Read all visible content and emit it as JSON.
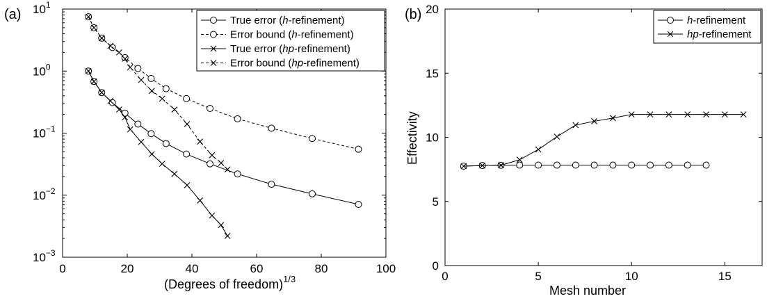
{
  "chart_data": [
    {
      "panel_label": "(a)",
      "type": "line",
      "xlabel": "(Degrees of freedom)",
      "xlabel_sup": "1/3",
      "ylabel": "",
      "xlim": [
        0,
        100
      ],
      "ylim": [
        0.001,
        10
      ],
      "yscale": "log",
      "xticks": [
        "0",
        "20",
        "40",
        "60",
        "80",
        "100"
      ],
      "yticks": [
        {
          "base": "10",
          "exp": "−3"
        },
        {
          "base": "10",
          "exp": "−2"
        },
        {
          "base": "10",
          "exp": "−1"
        },
        {
          "base": "10",
          "exp": "0"
        },
        {
          "base": "10",
          "exp": "1"
        }
      ],
      "legend_position": "top-right",
      "series": [
        {
          "name": "True error (h-refinement)",
          "legend_pre": "True error (",
          "legend_it": "h",
          "legend_post": "-refinement)",
          "marker": "circle",
          "dash": false,
          "x": [
            8,
            9.7,
            12.1,
            15.4,
            19.3,
            23.3,
            27.4,
            32,
            38.3,
            45.6,
            54.1,
            64.6,
            77.2,
            91.5
          ],
          "y": [
            1.0,
            0.68,
            0.45,
            0.31,
            0.21,
            0.14,
            0.098,
            0.068,
            0.046,
            0.032,
            0.022,
            0.015,
            0.0105,
            0.0071
          ]
        },
        {
          "name": "Error bound (h-refinement)",
          "legend_pre": "Error bound (",
          "legend_it": "h",
          "legend_post": "-refinement)",
          "marker": "circle",
          "dash": true,
          "x": [
            8,
            9.7,
            12.1,
            15.4,
            19.3,
            23.3,
            27.4,
            32,
            38.3,
            45.6,
            54.1,
            64.6,
            77.2,
            91.5
          ],
          "y": [
            7.5,
            5.0,
            3.4,
            2.4,
            1.65,
            1.1,
            0.76,
            0.52,
            0.36,
            0.25,
            0.17,
            0.12,
            0.082,
            0.055
          ]
        },
        {
          "name": "True error (hp-refinement)",
          "legend_pre": "True error (",
          "legend_it": "hp",
          "legend_post": "-refinement)",
          "marker": "x",
          "dash": false,
          "x": [
            8,
            9.7,
            12.1,
            14.8,
            17.5,
            19.3,
            20.9,
            24.3,
            27.6,
            30.8,
            34.6,
            38.5,
            42.5,
            46.2,
            49,
            51
          ],
          "y": [
            1.0,
            0.68,
            0.45,
            0.33,
            0.24,
            0.18,
            0.115,
            0.072,
            0.046,
            0.032,
            0.022,
            0.0145,
            0.0082,
            0.0047,
            0.0033,
            0.0022
          ]
        },
        {
          "name": "Error bound (hp-refinement)",
          "legend_pre": "Error bound (",
          "legend_it": "hp",
          "legend_post": "-refinement)",
          "marker": "x",
          "dash": true,
          "x": [
            8,
            9.7,
            12.1,
            14.8,
            17.5,
            19.3,
            20.9,
            24.3,
            27.6,
            30.8,
            34.6,
            38.5,
            42.5,
            46.2,
            49,
            51
          ],
          "y": [
            7.5,
            5.0,
            3.4,
            2.55,
            2.0,
            1.58,
            1.15,
            0.72,
            0.48,
            0.36,
            0.24,
            0.14,
            0.073,
            0.044,
            0.033,
            0.026
          ]
        }
      ]
    },
    {
      "panel_label": "(b)",
      "type": "line",
      "xlabel": "Mesh number",
      "ylabel": "Effectivity",
      "xlim": [
        0,
        17
      ],
      "ylim": [
        0,
        20
      ],
      "xticks": [
        0,
        5,
        10,
        15
      ],
      "yticks": [
        0,
        5,
        10,
        15,
        20
      ],
      "legend_position": "top-right",
      "series": [
        {
          "name": "h-refinement",
          "legend_it": "h",
          "legend_post": "-refinement",
          "marker": "circle",
          "x": [
            1,
            2,
            3,
            4,
            5,
            6,
            7,
            8,
            9,
            10,
            11,
            12,
            13,
            14
          ],
          "y": [
            7.75,
            7.8,
            7.82,
            7.83,
            7.83,
            7.83,
            7.83,
            7.83,
            7.83,
            7.83,
            7.83,
            7.83,
            7.83,
            7.83
          ]
        },
        {
          "name": "hp-refinement",
          "legend_it": "hp",
          "legend_post": "-refinement",
          "marker": "x",
          "x": [
            1,
            2,
            3,
            4,
            5,
            6,
            7,
            8,
            9,
            10,
            11,
            12,
            13,
            14,
            15,
            16
          ],
          "y": [
            7.75,
            7.8,
            7.82,
            8.25,
            9.05,
            10.05,
            10.95,
            11.25,
            11.5,
            11.78,
            11.78,
            11.78,
            11.78,
            11.78,
            11.78,
            11.78
          ]
        }
      ]
    }
  ]
}
